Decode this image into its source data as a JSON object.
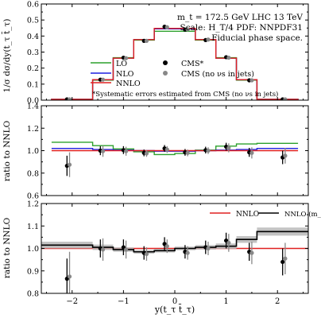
{
  "header": {
    "line1": "m_t = 172.5 GeV LHC 13 TeV",
    "line2": "Scale: H_T/4 PDF: NNPDF31",
    "line3": "Fiducial phase space."
  },
  "colors": {
    "LO": "#2ca02c",
    "NLO": "#1f1fe0",
    "NNLO": "#e02020",
    "NNLO_alt": "#000000",
    "band": "#b8b8b8",
    "cms": "#000000",
    "cms_nonu": "#888888"
  },
  "chart_data": [
    {
      "type": "line",
      "ylabel": "1/σ dσ/dy(t_τ t̄_τ)",
      "ylim": [
        0,
        0.6
      ],
      "yticks": [
        "0.0",
        "0.1",
        "0.2",
        "0.3",
        "0.4",
        "0.5",
        "0.6"
      ],
      "xlim": [
        -2.6,
        2.6
      ],
      "bin_edges": [
        -2.4,
        -1.6,
        -1.2,
        -0.8,
        -0.4,
        0.0,
        0.4,
        0.8,
        1.2,
        1.6,
        2.4
      ],
      "series": [
        {
          "name": "LO",
          "values": [
            0.005,
            0.125,
            0.265,
            0.375,
            0.43,
            0.43,
            0.375,
            0.265,
            0.125,
            0.005
          ]
        },
        {
          "name": "NLO",
          "values": [
            0.005,
            0.128,
            0.262,
            0.378,
            0.445,
            0.445,
            0.378,
            0.262,
            0.128,
            0.005
          ]
        },
        {
          "name": "NNLO",
          "values": [
            0.005,
            0.128,
            0.262,
            0.378,
            0.448,
            0.448,
            0.378,
            0.262,
            0.128,
            0.005
          ]
        }
      ],
      "points": [
        {
          "name": "CMS*",
          "x": [
            -2.1,
            -1.45,
            -1.0,
            -0.6,
            -0.2,
            0.2,
            0.6,
            1.0,
            1.45,
            2.1
          ],
          "y": [
            0.005,
            0.128,
            0.265,
            0.37,
            0.458,
            0.44,
            0.375,
            0.268,
            0.124,
            0.005
          ]
        },
        {
          "name": "CMS (no νs in jets)",
          "x": [
            -2.05,
            -1.4,
            -0.95,
            -0.55,
            -0.15,
            0.25,
            0.65,
            1.05,
            1.5,
            2.15
          ],
          "y": [
            0.005,
            0.128,
            0.262,
            0.37,
            0.455,
            0.442,
            0.378,
            0.265,
            0.124,
            0.005
          ]
        }
      ],
      "legend": [
        "LO",
        "NLO",
        "NNLO",
        "CMS*",
        "CMS (no νs in jets)"
      ],
      "note": "*Systematic errors estimated from CMS (no νs in jets)"
    },
    {
      "type": "line",
      "ylabel": "ratio to NNLO",
      "ylim": [
        0.6,
        1.4
      ],
      "yticks": [
        "0.6",
        "0.8",
        "1.0",
        "1.2",
        "1.4"
      ],
      "xlim": [
        -2.6,
        2.6
      ],
      "bin_edges": [
        -2.4,
        -1.6,
        -1.2,
        -0.8,
        -0.4,
        0.0,
        0.4,
        0.8,
        1.2,
        1.6,
        2.4
      ],
      "series": [
        {
          "name": "LO",
          "values": [
            1.075,
            1.045,
            1.015,
            0.99,
            0.965,
            0.975,
            1.005,
            1.04,
            1.06,
            1.065
          ]
        },
        {
          "name": "NLO",
          "values": [
            1.02,
            1.01,
            1.005,
            1.0,
            0.995,
            0.995,
            1.0,
            1.005,
            1.01,
            1.02
          ]
        },
        {
          "name": "NNLO",
          "values": [
            1.0,
            1.0,
            1.0,
            1.0,
            1.0,
            1.0,
            1.0,
            1.0,
            1.0,
            1.0
          ]
        }
      ],
      "points": [
        {
          "name": "CMS*",
          "x": [
            -2.1,
            -1.45,
            -1.0,
            -0.6,
            -0.2,
            0.2,
            0.6,
            1.0,
            1.45,
            2.1
          ],
          "y": [
            0.865,
            1.0,
            1.005,
            0.98,
            1.02,
            0.985,
            1.005,
            1.035,
            0.985,
            0.94
          ],
          "err": [
            0.09,
            0.04,
            0.035,
            0.03,
            0.03,
            0.03,
            0.03,
            0.035,
            0.04,
            0.06
          ]
        },
        {
          "name": "CMS (no νs in jets)",
          "x": [
            -2.05,
            -1.4,
            -0.95,
            -0.55,
            -0.15,
            0.25,
            0.65,
            1.05,
            1.5,
            2.15
          ],
          "y": [
            0.875,
            0.995,
            0.995,
            0.975,
            1.01,
            0.98,
            1.0,
            1.025,
            0.98,
            0.955
          ],
          "err": [
            0.11,
            0.05,
            0.04,
            0.03,
            0.03,
            0.03,
            0.03,
            0.04,
            0.05,
            0.07
          ]
        }
      ]
    },
    {
      "type": "line",
      "ylabel": "ratio to NNLO",
      "xlabel": "y(t_τ t̄_τ)",
      "ylim": [
        0.8,
        1.2
      ],
      "yticks": [
        "0.8",
        "0.9",
        "1.0",
        "1.1",
        "1.2"
      ],
      "xlim": [
        -2.6,
        2.6
      ],
      "xticks": [
        -2,
        -1,
        0,
        1,
        2
      ],
      "xticklabels": [
        "−2",
        "−1",
        "0",
        "1",
        "2"
      ],
      "bin_edges": [
        -2.6,
        -1.6,
        -1.2,
        -0.8,
        -0.4,
        0.0,
        0.4,
        0.8,
        1.2,
        1.6,
        2.6
      ],
      "series": [
        {
          "name": "NNLO",
          "values": [
            1.0,
            1.0,
            1.0,
            1.0,
            1.0,
            1.0,
            1.0,
            1.0,
            1.0,
            1.0
          ]
        },
        {
          "name": "NNLO (m_t = 171.5 GeV)",
          "values": [
            1.015,
            1.005,
            0.995,
            0.985,
            0.99,
            1.0,
            1.005,
            1.01,
            1.04,
            1.075
          ],
          "band": [
            0.015,
            0.012,
            0.01,
            0.008,
            0.008,
            0.008,
            0.01,
            0.012,
            0.015,
            0.018
          ]
        }
      ],
      "points": [
        {
          "name": "CMS*",
          "x": [
            -2.1,
            -1.45,
            -1.0,
            -0.6,
            -0.2,
            0.2,
            0.6,
            1.0,
            1.45,
            2.1
          ],
          "y": [
            0.865,
            1.0,
            1.005,
            0.98,
            1.02,
            0.985,
            1.005,
            1.035,
            0.985,
            0.94
          ],
          "err": [
            0.09,
            0.04,
            0.035,
            0.03,
            0.03,
            0.03,
            0.03,
            0.035,
            0.04,
            0.06
          ]
        },
        {
          "name": "CMS (no νs in jets)",
          "x": [
            -2.05,
            -1.4,
            -0.95,
            -0.55,
            -0.15,
            0.25,
            0.65,
            1.05,
            1.5,
            2.15
          ],
          "y": [
            0.875,
            0.995,
            0.995,
            0.975,
            1.01,
            0.98,
            1.0,
            1.025,
            0.98,
            0.955
          ],
          "err": [
            0.11,
            0.05,
            0.04,
            0.03,
            0.03,
            0.03,
            0.03,
            0.04,
            0.05,
            0.07
          ]
        }
      ],
      "legend": [
        "NNLO",
        "NNLO (m_t = 171.5 GeV)"
      ]
    }
  ]
}
